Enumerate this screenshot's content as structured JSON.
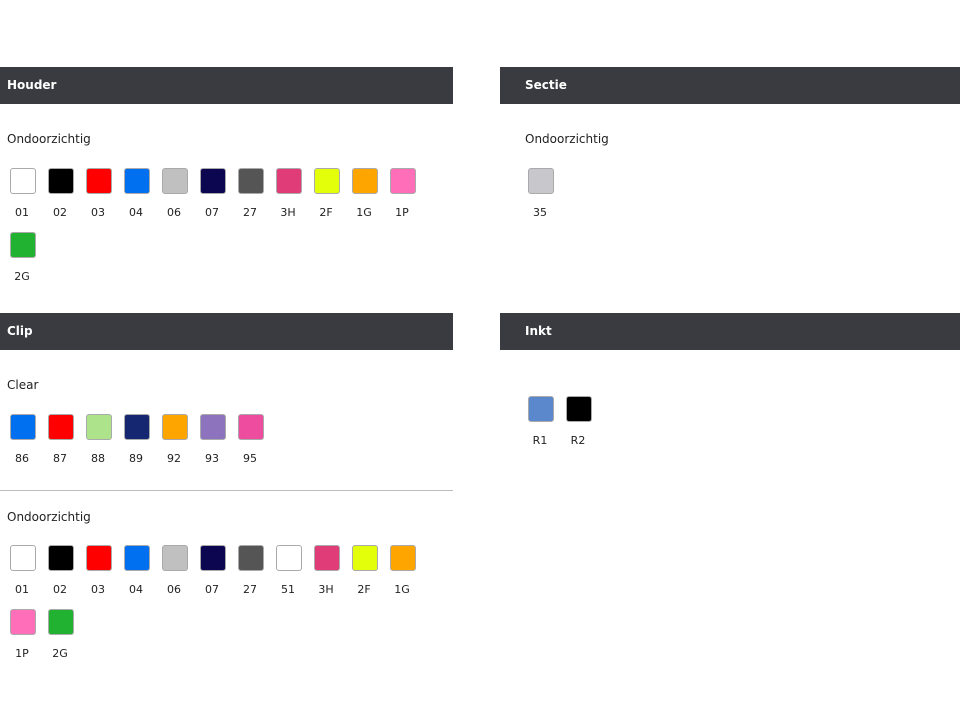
{
  "houder": {
    "title": "Houder",
    "groups": [
      {
        "label": "Ondoorzichtig",
        "swatches": [
          {
            "code": "01",
            "color": "#ffffff"
          },
          {
            "code": "02",
            "color": "#000000"
          },
          {
            "code": "03",
            "color": "#ff0000"
          },
          {
            "code": "04",
            "color": "#0070f0"
          },
          {
            "code": "06",
            "color": "#c0c0c0"
          },
          {
            "code": "07",
            "color": "#0c0650"
          },
          {
            "code": "27",
            "color": "#555555"
          },
          {
            "code": "3H",
            "color": "#e03c78"
          },
          {
            "code": "2F",
            "color": "#e4ff0a"
          },
          {
            "code": "1G",
            "color": "#ffa500"
          },
          {
            "code": "1P",
            "color": "#ff6eb8"
          },
          {
            "code": "2G",
            "color": "#22b232"
          }
        ]
      }
    ]
  },
  "sectie": {
    "title": "Sectie",
    "groups": [
      {
        "label": "Ondoorzichtig",
        "swatches": [
          {
            "code": "35",
            "color": "#c8c8cc"
          }
        ]
      }
    ]
  },
  "clip": {
    "title": "Clip",
    "groups": [
      {
        "label": "Clear",
        "swatches": [
          {
            "code": "86",
            "color": "#0070f0"
          },
          {
            "code": "87",
            "color": "#ff0000"
          },
          {
            "code": "88",
            "color": "#ade38a"
          },
          {
            "code": "89",
            "color": "#152770"
          },
          {
            "code": "92",
            "color": "#ffa500"
          },
          {
            "code": "93",
            "color": "#8d72be"
          },
          {
            "code": "95",
            "color": "#ee4c9e"
          }
        ]
      },
      {
        "label": "Ondoorzichtig",
        "swatches": [
          {
            "code": "01",
            "color": "#ffffff"
          },
          {
            "code": "02",
            "color": "#000000"
          },
          {
            "code": "03",
            "color": "#ff0000"
          },
          {
            "code": "04",
            "color": "#0070f0"
          },
          {
            "code": "06",
            "color": "#c0c0c0"
          },
          {
            "code": "07",
            "color": "#0c0650"
          },
          {
            "code": "27",
            "color": "#555555"
          },
          {
            "code": "51",
            "color": "#ffffff"
          },
          {
            "code": "3H",
            "color": "#e03c78"
          },
          {
            "code": "2F",
            "color": "#e4ff0a"
          },
          {
            "code": "1G",
            "color": "#ffa500"
          },
          {
            "code": "1P",
            "color": "#ff6eb8"
          },
          {
            "code": "2G",
            "color": "#22b232"
          }
        ]
      }
    ]
  },
  "inkt": {
    "title": "Inkt",
    "groups": [
      {
        "label": "",
        "swatches": [
          {
            "code": "R1",
            "color": "#5b88cc"
          },
          {
            "code": "R2",
            "color": "#000000"
          }
        ]
      }
    ]
  }
}
